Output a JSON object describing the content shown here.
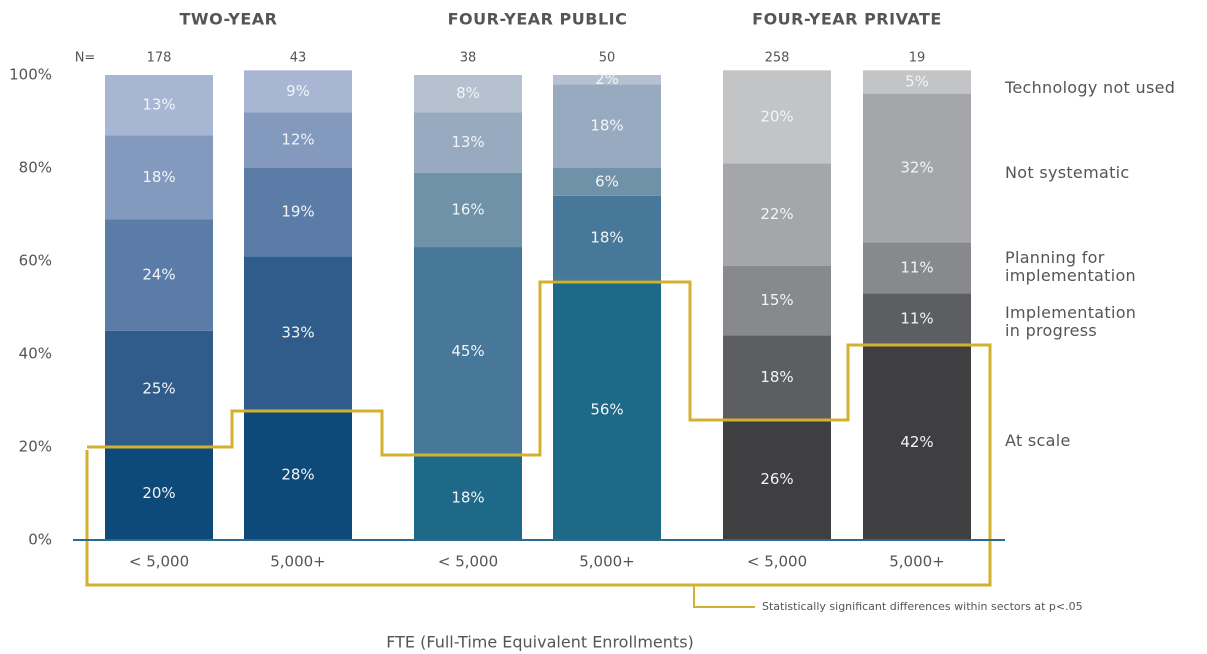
{
  "chart_data": {
    "type": "bar",
    "stacked": true,
    "groups": [
      "TWO-YEAR",
      "FOUR-YEAR PUBLIC",
      "FOUR-YEAR PRIVATE"
    ],
    "group_color": "#a8462c",
    "n_label": "N=",
    "n": [
      178,
      43,
      38,
      50,
      258,
      19
    ],
    "n_color": "#4b79ad",
    "categories": [
      "< 5,000",
      "5,000+",
      "< 5,000",
      "5,000+",
      "< 5,000",
      "5,000+"
    ],
    "series": [
      {
        "name": "At scale",
        "values": [
          20,
          28,
          18,
          56,
          26,
          42
        ],
        "value_labels": [
          "20%",
          "28%",
          "18%",
          "56%",
          "26%",
          "42%"
        ],
        "colors": [
          "#0e4a79",
          "#0e4a79",
          "#1e6888",
          "#1e6888",
          "#3f3f41",
          "#3f3f41"
        ]
      },
      {
        "name": "Implementation in progress",
        "values": [
          25,
          33,
          45,
          18,
          18,
          11
        ],
        "value_labels": [
          "25%",
          "33%",
          "45%",
          "18%",
          "18%",
          "11%"
        ],
        "colors": [
          "#305c8b",
          "#305c8b",
          "#47789a",
          "#47789a",
          "#5d5e61",
          "#5d5e61"
        ]
      },
      {
        "name": "Planning for implementation",
        "values": [
          24,
          19,
          16,
          6,
          15,
          11
        ],
        "value_labels": [
          "24%",
          "19%",
          "16%",
          "6%",
          "15%",
          "11%"
        ],
        "colors": [
          "#5c7ca8",
          "#5c7ca8",
          "#6f92a9",
          "#6f92a9",
          "#87898c",
          "#87898c"
        ]
      },
      {
        "name": "Not systematic",
        "values": [
          18,
          12,
          13,
          18,
          22,
          32
        ],
        "value_labels": [
          "18%",
          "12%",
          "13%",
          "18%",
          "22%",
          "32%"
        ],
        "colors": [
          "#8399be",
          "#8399be",
          "#97aabf",
          "#97aabf",
          "#a5a6a9",
          "#a5a6a9"
        ]
      },
      {
        "name": "Technology not used",
        "values": [
          13,
          9,
          8,
          2,
          20,
          5
        ],
        "value_labels": [
          "13%",
          "9%",
          "8%",
          "2%",
          "20%",
          "5%"
        ],
        "colors": [
          "#a8b6d3",
          "#a8b6d3",
          "#b5c1ce",
          "#b5c1ce",
          "#c3c4c6",
          "#c3c4c6"
        ]
      }
    ],
    "ylim": [
      0,
      100
    ],
    "yticks": [
      {
        "value": 0,
        "label": "0%"
      },
      {
        "value": 20,
        "label": "20%"
      },
      {
        "value": 40,
        "label": "40%"
      },
      {
        "value": 60,
        "label": "60%"
      },
      {
        "value": 80,
        "label": "80%"
      },
      {
        "value": 100,
        "label": "100%"
      }
    ],
    "x_label": "FTE (Full-Time Equivalent Enrollments)",
    "annotation": "Statistically significant differences within sectors at p<.05",
    "annotation_color": "#d4b030",
    "axis_color": "#2a6a94"
  }
}
